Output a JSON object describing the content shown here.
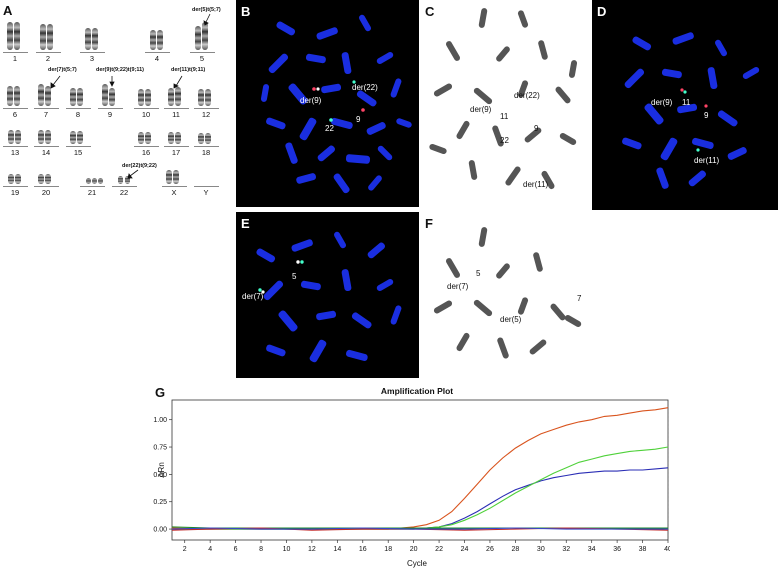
{
  "panel_letters": {
    "A": "A",
    "B": "B",
    "C": "C",
    "D": "D",
    "E": "E",
    "F": "F",
    "G": "G"
  },
  "karyotype": {
    "labels": [
      "1",
      "2",
      "3",
      "4",
      "5",
      "6",
      "7",
      "8",
      "9",
      "10",
      "11",
      "12",
      "13",
      "14",
      "15",
      "16",
      "17",
      "18",
      "19",
      "20",
      "21",
      "22",
      "X",
      "Y"
    ],
    "annotations": {
      "der5": "der(5)t(5;7)",
      "der7": "der(7)t(5;7)",
      "der9": "der(9)t(9;22)t(9;11)",
      "der11": "der(11)t(9;11)",
      "der22": "der(22)t(9;22)"
    }
  },
  "panel_b": {
    "der9": "der(9)",
    "der22": "der(22)",
    "n9": "9",
    "n22": "22"
  },
  "panel_c": {
    "der22": "der(22)",
    "der9": "der(9)",
    "n11": "11",
    "n9": "9",
    "n22": "22",
    "der11": "der(11)"
  },
  "panel_d": {
    "der9": "der(9)",
    "n11": "11",
    "n9": "9",
    "der11": "der(11)"
  },
  "panel_e": {
    "n5": "5",
    "der7": "der(7)"
  },
  "panel_f": {
    "n5": "5",
    "der7": "der(7)",
    "n7": "7",
    "der5": "der(5)"
  },
  "chart_data": {
    "type": "line",
    "title": "Amplification Plot",
    "xlabel": "Cycle",
    "ylabel": "ΔRn",
    "xlim": [
      1,
      40
    ],
    "ylim": [
      -0.1,
      1.18
    ],
    "xticks": [
      2,
      4,
      6,
      8,
      10,
      12,
      14,
      16,
      18,
      20,
      22,
      24,
      26,
      28,
      30,
      32,
      34,
      36,
      38,
      40
    ],
    "yticks": [
      0.0,
      0.25,
      0.5,
      0.75,
      1.0
    ],
    "ytick_labels": [
      "0.00",
      "0.25",
      "0.50",
      "0.75",
      "1.00"
    ],
    "grid": true,
    "series": [
      {
        "color": "#d9541e",
        "x": [
          1,
          4,
          8,
          12,
          16,
          18,
          19,
          20,
          21,
          22,
          23,
          24,
          25,
          26,
          27,
          28,
          29,
          30,
          31,
          32,
          33,
          34,
          35,
          36,
          37,
          38,
          39,
          40
        ],
        "y": [
          0.01,
          0.0,
          0.0,
          0.0,
          0.0,
          0.0,
          0.01,
          0.02,
          0.04,
          0.08,
          0.16,
          0.28,
          0.41,
          0.54,
          0.65,
          0.74,
          0.81,
          0.87,
          0.91,
          0.95,
          0.98,
          1.0,
          1.03,
          1.04,
          1.06,
          1.08,
          1.09,
          1.11
        ]
      },
      {
        "color": "#2a2db5",
        "x": [
          1,
          4,
          8,
          12,
          16,
          18,
          19,
          20,
          21,
          22,
          23,
          24,
          25,
          26,
          27,
          28,
          29,
          30,
          31,
          32,
          33,
          34,
          35,
          36,
          37,
          38,
          39,
          40
        ],
        "y": [
          0.0,
          0.0,
          0.0,
          0.0,
          0.0,
          0.0,
          0.0,
          0.0,
          0.01,
          0.02,
          0.05,
          0.1,
          0.16,
          0.23,
          0.3,
          0.36,
          0.4,
          0.44,
          0.47,
          0.49,
          0.51,
          0.52,
          0.53,
          0.53,
          0.54,
          0.54,
          0.55,
          0.56
        ]
      },
      {
        "color": "#4fd13a",
        "x": [
          1,
          4,
          8,
          12,
          16,
          18,
          19,
          20,
          21,
          22,
          23,
          24,
          25,
          26,
          27,
          28,
          29,
          30,
          31,
          32,
          33,
          34,
          35,
          36,
          37,
          38,
          39,
          40
        ],
        "y": [
          0.0,
          0.0,
          0.0,
          0.0,
          0.0,
          0.0,
          0.0,
          0.0,
          0.01,
          0.02,
          0.04,
          0.08,
          0.13,
          0.19,
          0.26,
          0.33,
          0.39,
          0.45,
          0.51,
          0.56,
          0.61,
          0.64,
          0.67,
          0.69,
          0.71,
          0.72,
          0.73,
          0.75
        ]
      },
      {
        "color": "#1d8a2a",
        "x": [
          1,
          4,
          8,
          12,
          16,
          20,
          24,
          28,
          32,
          36,
          40
        ],
        "y": [
          0.02,
          0.01,
          0.01,
          0.01,
          0.01,
          0.01,
          0.01,
          0.01,
          0.01,
          0.01,
          0.01
        ]
      },
      {
        "color": "#c42a2a",
        "x": [
          1,
          4,
          8,
          12,
          16,
          20,
          24,
          28,
          32,
          36,
          40
        ],
        "y": [
          -0.01,
          0.0,
          0.01,
          -0.01,
          0.0,
          0.0,
          -0.01,
          0.0,
          0.01,
          0.0,
          -0.01
        ]
      },
      {
        "color": "#3548c8",
        "x": [
          1,
          4,
          8,
          12,
          16,
          20,
          24,
          28,
          32,
          36,
          40
        ],
        "y": [
          0.0,
          0.01,
          0.0,
          0.0,
          0.01,
          0.0,
          0.0,
          0.01,
          0.0,
          0.0,
          0.0
        ]
      }
    ]
  }
}
